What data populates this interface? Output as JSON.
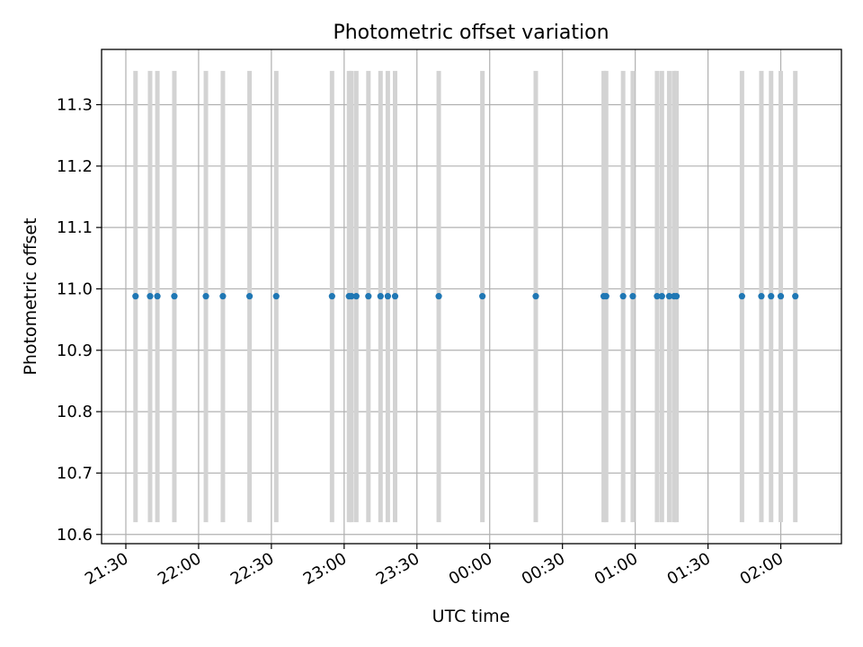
{
  "chart_data": {
    "type": "scatter",
    "title": "Photometric offset variation",
    "xlabel": "UTC time",
    "ylabel": "Photometric offset",
    "x_axis": {
      "kind": "time",
      "range": [
        "21:20",
        "02:25"
      ],
      "ticks": [
        "21:30",
        "22:00",
        "22:30",
        "23:00",
        "23:30",
        "00:00",
        "00:30",
        "01:00",
        "01:30",
        "02:00"
      ],
      "tick_label_rotation_deg": 30
    },
    "y_axis": {
      "range": [
        10.585,
        11.39
      ],
      "ticks": [
        10.6,
        10.7,
        10.8,
        10.9,
        11.0,
        11.1,
        11.2,
        11.3
      ],
      "tick_labels": [
        "10.6",
        "10.7",
        "10.8",
        "10.9",
        "11.0",
        "11.1",
        "11.2",
        "11.3"
      ]
    },
    "grid": true,
    "legend": "none",
    "marker_color": "#1f77b4",
    "errorbar_color": "#d3d3d3",
    "series": [
      {
        "y": 10.988,
        "error_low": 10.62,
        "error_high": 11.355,
        "x": [
          "21:34",
          "21:40",
          "21:43",
          "21:50",
          "22:03",
          "22:10",
          "22:21",
          "22:32",
          "22:55",
          "23:02",
          "23:03",
          "23:05",
          "23:10",
          "23:15",
          "23:18",
          "23:21",
          "23:39",
          "23:57",
          "00:19",
          "00:47",
          "00:48",
          "00:55",
          "00:59",
          "01:09",
          "01:11",
          "01:14",
          "01:16",
          "01:17",
          "01:44",
          "01:52",
          "01:56",
          "02:00",
          "02:06"
        ]
      }
    ]
  }
}
